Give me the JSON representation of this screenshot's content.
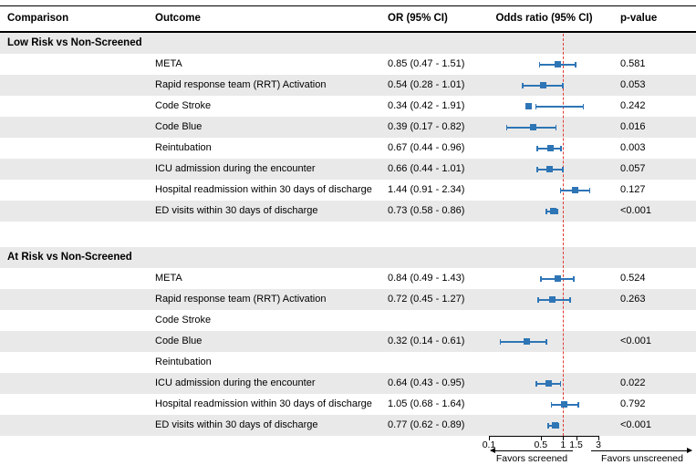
{
  "colors": {
    "marker": "#2e75b6",
    "ref_line": "#e23b32",
    "row_shade": "#e9e9e9"
  },
  "header": {
    "comparison": "Comparison",
    "outcome": "Outcome",
    "or_ci": "OR (95% CI)",
    "plot": "Odds ratio (95% CI)",
    "p_value": "p-value"
  },
  "chart_data": {
    "type": "scatter",
    "subtype": "forest-plot",
    "x_scale": "log",
    "x_range": [
      0.1,
      3
    ],
    "x_ticks": [
      0.1,
      0.5,
      1,
      1.5,
      3
    ],
    "ref_line": 1,
    "footer": {
      "left_arrow_label": "Favors screened",
      "right_arrow_label": "Favors unscreened"
    },
    "groups": [
      {
        "label": "Low Risk vs Non-Screened",
        "rows": [
          {
            "outcome": "META",
            "or": 0.85,
            "low": 0.47,
            "high": 1.51,
            "or_text": "0.85 (0.47 - 1.51)",
            "p": "0.581"
          },
          {
            "outcome": "Rapid response team (RRT) Activation",
            "or": 0.54,
            "low": 0.28,
            "high": 1.01,
            "or_text": "0.54 (0.28 - 1.01)",
            "p": "0.053"
          },
          {
            "outcome": "Code Stroke",
            "or": 0.34,
            "low": 0.42,
            "high": 1.91,
            "or_text": "0.34 (0.42 - 1.91)",
            "p": "0.242"
          },
          {
            "outcome": "Code Blue",
            "or": 0.39,
            "low": 0.17,
            "high": 0.82,
            "or_text": "0.39 (0.17 - 0.82)",
            "p": "0.016"
          },
          {
            "outcome": "Reintubation",
            "or": 0.67,
            "low": 0.44,
            "high": 0.96,
            "or_text": "0.67 (0.44 - 0.96)",
            "p": "0.003"
          },
          {
            "outcome": "ICU admission during the encounter",
            "or": 0.66,
            "low": 0.44,
            "high": 1.01,
            "or_text": "0.66 (0.44 - 1.01)",
            "p": "0.057"
          },
          {
            "outcome": "Hospital readmission within 30 days of discharge",
            "or": 1.44,
            "low": 0.91,
            "high": 2.34,
            "or_text": "1.44 (0.91 - 2.34)",
            "p": "0.127"
          },
          {
            "outcome": "ED visits within 30 days of discharge",
            "or": 0.73,
            "low": 0.58,
            "high": 0.86,
            "or_text": "0.73 (0.58 - 0.86)",
            "p": "<0.001"
          }
        ]
      },
      {
        "label": "At Risk vs Non-Screened",
        "rows": [
          {
            "outcome": "META",
            "or": 0.84,
            "low": 0.49,
            "high": 1.43,
            "or_text": "0.84 (0.49 - 1.43)",
            "p": "0.524"
          },
          {
            "outcome": "Rapid response team (RRT) Activation",
            "or": 0.72,
            "low": 0.45,
            "high": 1.27,
            "or_text": "0.72 (0.45 - 1.27)",
            "p": "0.263"
          },
          {
            "outcome": "Code Stroke",
            "or": null,
            "low": null,
            "high": null,
            "or_text": "",
            "p": ""
          },
          {
            "outcome": "Code Blue",
            "or": 0.32,
            "low": 0.14,
            "high": 0.61,
            "or_text": "0.32 (0.14 - 0.61)",
            "p": "<0.001"
          },
          {
            "outcome": "Reintubation",
            "or": null,
            "low": null,
            "high": null,
            "or_text": "",
            "p": ""
          },
          {
            "outcome": "ICU admission during the encounter",
            "or": 0.64,
            "low": 0.43,
            "high": 0.95,
            "or_text": "0.64 (0.43 - 0.95)",
            "p": "0.022"
          },
          {
            "outcome": "Hospital readmission within 30 days of discharge",
            "or": 1.05,
            "low": 0.68,
            "high": 1.64,
            "or_text": "1.05 (0.68 - 1.64)",
            "p": "0.792"
          },
          {
            "outcome": "ED visits within 30 days of discharge",
            "or": 0.77,
            "low": 0.62,
            "high": 0.89,
            "or_text": "0.77 (0.62 - 0.89)",
            "p": "<0.001"
          }
        ]
      }
    ]
  }
}
